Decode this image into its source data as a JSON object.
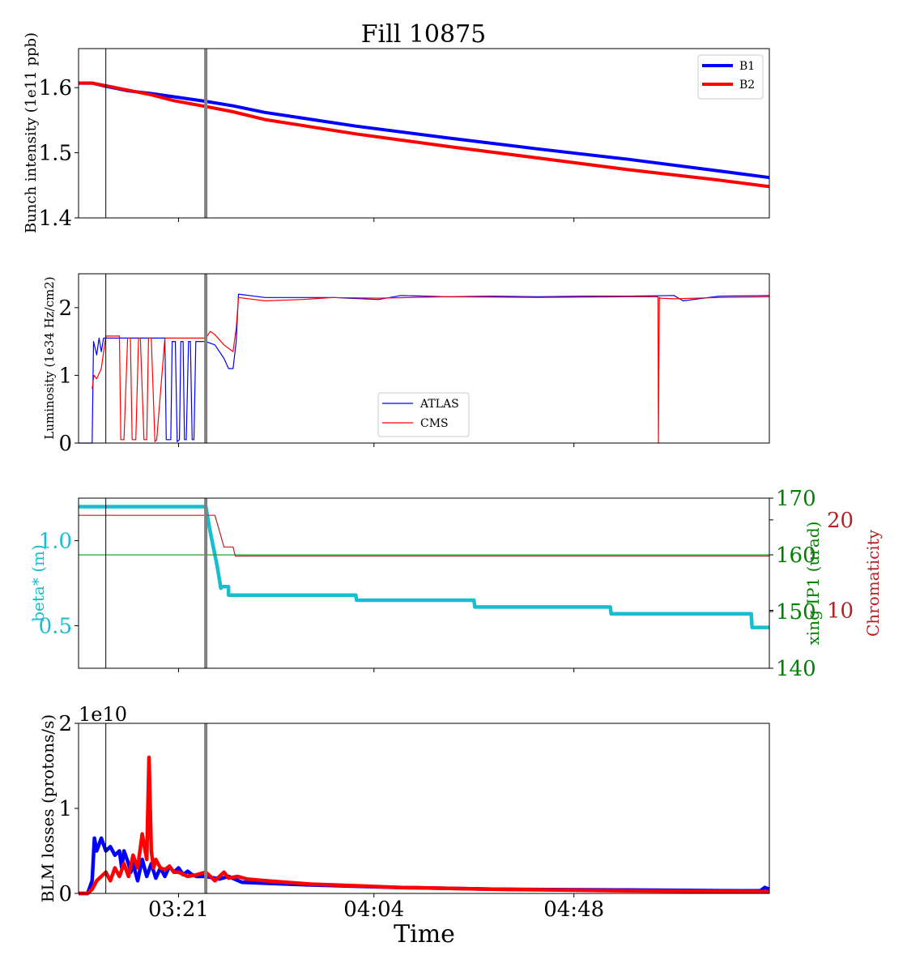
{
  "colors": {
    "b1": "#0000ff",
    "b2": "#ff0000",
    "atlas": "#0000ff",
    "cms": "#ff0000",
    "beta": "#17becf",
    "xing": "#2ca02c",
    "chroma": "#b22222",
    "marker_thin": "#000000",
    "marker_thick": "#808080"
  },
  "chart_data": {
    "title": "Fill 10875",
    "xlabel": "Time",
    "x_tick_labels": [
      "03:21",
      "04:04",
      "04:48"
    ],
    "x_tick_minutes": [
      201,
      244,
      288
    ],
    "x_range_minutes": [
      179,
      331
    ],
    "markers": {
      "thin_line_minutes": 185,
      "thick_line_minutes": 207
    },
    "panels": [
      {
        "name": "bunch-intensity",
        "type": "line",
        "ylabel": "Bunch intensity (1e11 ppb)",
        "ylim": [
          1.4,
          1.66
        ],
        "yticks": [
          1.4,
          1.5,
          1.6
        ],
        "ytick_labels": [
          "1.4",
          "1.5",
          "1.6"
        ],
        "legend": "top-right",
        "series": [
          {
            "name": "B1",
            "color_key": "b1",
            "x": [
              179,
              182,
              185,
              190,
              195,
              200,
              207,
              213,
              220,
              240,
              260,
              280,
              300,
              320,
              331
            ],
            "y": [
              1.607,
              1.607,
              1.602,
              1.595,
              1.591,
              1.586,
              1.579,
              1.572,
              1.562,
              1.541,
              1.523,
              1.506,
              1.49,
              1.472,
              1.462
            ]
          },
          {
            "name": "B2",
            "color_key": "b2",
            "x": [
              179,
              182,
              185,
              190,
              195,
              200,
              207,
              213,
              220,
              240,
              260,
              280,
              300,
              320,
              331
            ],
            "y": [
              1.607,
              1.607,
              1.603,
              1.596,
              1.589,
              1.58,
              1.571,
              1.563,
              1.551,
              1.529,
              1.51,
              1.492,
              1.474,
              1.458,
              1.448
            ]
          }
        ]
      },
      {
        "name": "luminosity",
        "type": "line",
        "ylabel": "Luminosity (1e34 Hz/cm2)",
        "ylim": [
          0,
          2.5
        ],
        "yticks": [
          0,
          1,
          2
        ],
        "ytick_labels": [
          "0",
          "1",
          "2"
        ],
        "legend": "bottom-center",
        "series": [
          {
            "name": "ATLAS",
            "color_key": "atlas",
            "x": [
              179,
              182,
              182.3,
              183,
              183.5,
              184,
              184.5,
              185,
              198,
              198.3,
              199.3,
              199.6,
              200.3,
              200.7,
              201.2,
              201.5,
              202,
              202.3,
              202.7,
              203.2,
              203.6,
              204,
              204.4,
              204.8,
              205.4,
              206,
              207,
              209,
              211,
              212,
              213,
              213.7,
              214.2,
              220,
              235,
              245,
              250,
              260,
              270,
              280,
              290,
              300,
              310,
              312,
              320,
              331
            ],
            "y": [
              0,
              0,
              1.5,
              1.3,
              1.55,
              1.35,
              1.55,
              1.55,
              1.55,
              0.05,
              0.05,
              1.5,
              1.5,
              0.02,
              0.05,
              1.5,
              1.5,
              0.05,
              0.05,
              1.5,
              1.5,
              0.05,
              0.05,
              1.5,
              1.5,
              1.5,
              1.5,
              1.45,
              1.25,
              1.1,
              1.1,
              1.5,
              2.2,
              2.15,
              2.15,
              2.12,
              2.18,
              2.16,
              2.17,
              2.16,
              2.17,
              2.17,
              2.18,
              2.1,
              2.17,
              2.18
            ]
          },
          {
            "name": "CMS",
            "color_key": "cms",
            "x": [
              182,
              182.4,
              183,
              184,
              185,
              188,
              188.3,
              189,
              189.8,
              190.4,
              190.8,
              191.6,
              192.2,
              192.6,
              193.4,
              194,
              194.4,
              195,
              195.8,
              196.2,
              198,
              207,
              208,
              209,
              211,
              212,
              213,
              213.7,
              214.2,
              220,
              228,
              235,
              245,
              260,
              280,
              300,
              306.5,
              306.6,
              306.8,
              307,
              310,
              320,
              331
            ],
            "y": [
              0.8,
              1.0,
              0.95,
              1.1,
              1.58,
              1.58,
              0.05,
              0.05,
              1.55,
              1.55,
              0.05,
              0.05,
              1.55,
              1.55,
              0.05,
              0.05,
              1.55,
              1.55,
              0.02,
              0.05,
              1.55,
              1.55,
              1.65,
              1.6,
              1.45,
              1.4,
              1.35,
              1.7,
              2.15,
              2.1,
              2.12,
              2.15,
              2.14,
              2.16,
              2.15,
              2.16,
              2.16,
              0,
              2.15,
              2.14,
              2.13,
              2.15,
              2.16
            ]
          }
        ]
      },
      {
        "name": "optics",
        "type": "line",
        "ylabel": "beta* (m)",
        "ylim": [
          0.25,
          1.25
        ],
        "yticks": [
          0.5,
          1.0
        ],
        "ytick_labels": [
          "0.5",
          "1.0"
        ],
        "secondary_axes": [
          {
            "ylabel": "xing IP1 (urad)",
            "ylim": [
              140,
              170
            ],
            "yticks": [
              140,
              150,
              160,
              170
            ],
            "ytick_labels": [
              "140",
              "150",
              "160",
              "170"
            ]
          },
          {
            "ylabel": "Chromaticity",
            "ylim": [
              3.6,
              22.4
            ],
            "yticks": [
              10,
              20
            ],
            "ytick_labels": [
              "10",
              "20"
            ]
          }
        ],
        "series": [
          {
            "axis": "beta",
            "color_key": "beta",
            "x": [
              179,
              207,
              208,
              209.5,
              210.3,
              210.3,
              212,
              212,
              214,
              214.2,
              240,
              240.2,
              266,
              266.2,
              296,
              296.2,
              327,
              327.2,
              331
            ],
            "y": [
              1.2,
              1.2,
              1.05,
              0.85,
              0.72,
              0.73,
              0.73,
              0.68,
              0.68,
              0.68,
              0.68,
              0.65,
              0.65,
              0.61,
              0.61,
              0.57,
              0.57,
              0.49,
              0.49
            ]
          },
          {
            "axis": "xing",
            "color_key": "xing",
            "x": [
              179,
              331
            ],
            "y": [
              160,
              160
            ]
          },
          {
            "axis": "chroma",
            "color_key": "chroma",
            "x": [
              179,
              209,
              211,
              213,
              213.5,
              331
            ],
            "y": [
              20.5,
              20.5,
              17,
              17,
              16,
              16
            ]
          }
        ]
      },
      {
        "name": "blm-losses",
        "type": "line",
        "ylabel": "BLM losses (protons/s)",
        "offset_label": "1e10",
        "ylim": [
          0,
          2
        ],
        "yticks": [
          0,
          1,
          2
        ],
        "ytick_labels": [
          "0",
          "1",
          "2"
        ],
        "series": [
          {
            "name": "B1",
            "color_key": "b1",
            "x": [
              179,
              181,
              182,
              182.5,
              183,
              184,
              185,
              186,
              187,
              188,
              188.5,
              189,
              190,
              190.5,
              191,
              192,
              193,
              194,
              195,
              196,
              197,
              198,
              199,
              200,
              201,
              202,
              203,
              204,
              205,
              207,
              210,
              212,
              215,
              220,
              230,
              250,
              270,
              300,
              325,
              329,
              330,
              331
            ],
            "y": [
              0,
              0,
              0.15,
              0.65,
              0.5,
              0.65,
              0.5,
              0.55,
              0.45,
              0.5,
              0.3,
              0.5,
              0.35,
              0.25,
              0.35,
              0.15,
              0.4,
              0.2,
              0.35,
              0.18,
              0.3,
              0.2,
              0.32,
              0.25,
              0.3,
              0.22,
              0.26,
              0.22,
              0.2,
              0.2,
              0.17,
              0.2,
              0.13,
              0.12,
              0.1,
              0.07,
              0.05,
              0.04,
              0.03,
              0.03,
              0.07,
              0.05
            ]
          },
          {
            "name": "B2",
            "color_key": "b2",
            "x": [
              179,
              181,
              182,
              183,
              184,
              185,
              186,
              187,
              188,
              189,
              190,
              191,
              192,
              193,
              194,
              194.5,
              195,
              195.5,
              196,
              197,
              198,
              199,
              200,
              201,
              203,
              205,
              207,
              209,
              211,
              212,
              214,
              216,
              220,
              230,
              240,
              250,
              270,
              300,
              331
            ],
            "y": [
              0,
              0,
              0.05,
              0.15,
              0.2,
              0.25,
              0.15,
              0.3,
              0.2,
              0.35,
              0.2,
              0.45,
              0.3,
              0.7,
              0.4,
              1.6,
              0.5,
              0.3,
              0.4,
              0.3,
              0.28,
              0.32,
              0.25,
              0.25,
              0.2,
              0.22,
              0.25,
              0.15,
              0.25,
              0.18,
              0.2,
              0.17,
              0.15,
              0.11,
              0.09,
              0.07,
              0.05,
              0.03,
              0.02
            ]
          }
        ]
      }
    ]
  }
}
